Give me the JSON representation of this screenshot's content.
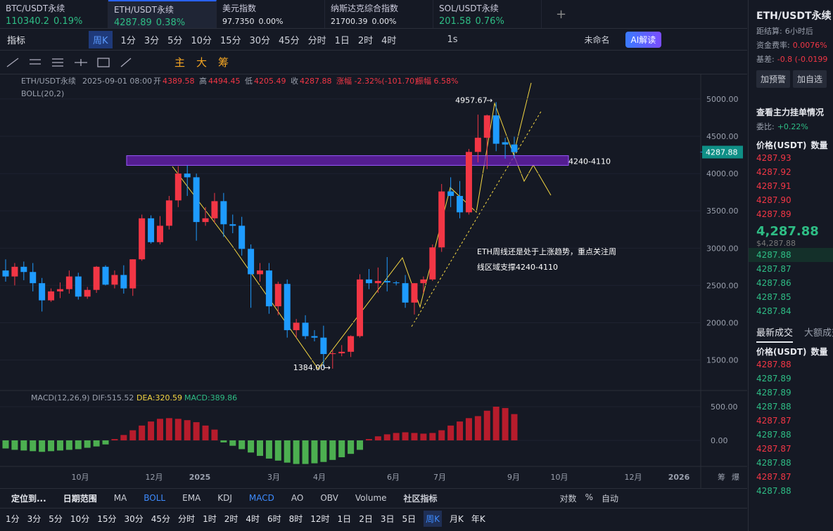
{
  "tabs": [
    {
      "name": "BTC/USDT永续",
      "price": "110340.2",
      "change": "0.19%"
    },
    {
      "name": "ETH/USDT永续",
      "price": "4287.89",
      "change": "0.38%"
    },
    {
      "name": "美元指数",
      "price": "97.7350",
      "change": "0.00%"
    },
    {
      "name": "纳斯达克综合指数",
      "price": "21700.39",
      "change": "0.00%"
    },
    {
      "name": "SOL/USDT永续",
      "price": "201.58",
      "change": "0.76%"
    }
  ],
  "toolbar": {
    "indicator": "指标",
    "period": "周K",
    "intervals": [
      "1分",
      "3分",
      "5分",
      "10分",
      "15分",
      "30分",
      "45分",
      "分时",
      "1日",
      "2时",
      "4时"
    ],
    "seconds": "1s",
    "layout": "未命名",
    "ai": "AI解读"
  },
  "tools": [
    "主",
    "大",
    "筹"
  ],
  "chart_data": {
    "type": "candlestick",
    "symbol": "ETH/USDT永续",
    "date": "2025-09-01 08:00",
    "open_label": "开",
    "high_label": "高",
    "low_label": "低",
    "close_label": "收",
    "change": "涨幅 -2.32%(-101.70)",
    "amplitude": "振幅 6.58%",
    "boll": "BOLL(20,2)",
    "ylim": [
      1100,
      5150
    ],
    "yticks": [
      {
        "value": 1500,
        "label": "1500.00"
      },
      {
        "value": 2000,
        "label": "2000.00"
      },
      {
        "value": 2500,
        "label": "2500.00"
      },
      {
        "value": 3000,
        "label": "3000.00"
      },
      {
        "value": 3500,
        "label": "3500.00"
      },
      {
        "value": 4000,
        "label": "4000.00"
      },
      {
        "value": 4500,
        "label": "4500.00"
      },
      {
        "value": 5000,
        "label": "5000.00"
      }
    ],
    "current": {
      "value": 4287.88,
      "label": "4287.88"
    },
    "zone": {
      "label": "4240-4110",
      "high": 4240,
      "low": 4110
    },
    "max_label": "4957.67",
    "min_label": "1384.00",
    "annotation": [
      "ETH周线还是处于上涨趋势，重点关注周",
      "线区域支撑4240-4110"
    ],
    "x_labels": [
      "10月",
      "12月",
      "2025",
      "3月",
      "4月",
      "6月",
      "7月",
      "9月",
      "10月",
      "12月",
      "2026"
    ],
    "axis_icons": [
      "筹",
      "爆"
    ],
    "candles": [
      [
        2700,
        2850,
        2550,
        2620
      ],
      [
        2620,
        2800,
        2500,
        2750
      ],
      [
        2750,
        2820,
        2570,
        2680
      ],
      [
        2680,
        2800,
        2420,
        2530
      ],
      [
        2530,
        2600,
        2150,
        2300
      ],
      [
        2300,
        2460,
        2280,
        2420
      ],
      [
        2420,
        2540,
        2330,
        2450
      ],
      [
        2450,
        2700,
        2390,
        2620
      ],
      [
        2620,
        2670,
        2310,
        2350
      ],
      [
        2350,
        2480,
        2320,
        2440
      ],
      [
        2440,
        2760,
        2400,
        2750
      ],
      [
        2750,
        2770,
        2500,
        2510
      ],
      [
        2510,
        2700,
        2460,
        2640
      ],
      [
        2640,
        2770,
        2390,
        2460
      ],
      [
        2460,
        2850,
        2360,
        2850
      ],
      [
        2850,
        3450,
        2830,
        3400
      ],
      [
        3400,
        3440,
        3060,
        3080
      ],
      [
        3080,
        3430,
        3050,
        3300
      ],
      [
        3300,
        3700,
        3250,
        3640
      ],
      [
        3640,
        4100,
        3550,
        4000
      ],
      [
        4000,
        4110,
        3700,
        3950
      ],
      [
        3950,
        4000,
        3100,
        3350
      ],
      [
        3350,
        3550,
        3300,
        3400
      ],
      [
        3400,
        3740,
        3340,
        3630
      ],
      [
        3630,
        3740,
        3150,
        3320
      ],
      [
        3320,
        3450,
        3200,
        3300
      ],
      [
        3300,
        3420,
        2900,
        2990
      ],
      [
        2990,
        3050,
        2200,
        2650
      ],
      [
        2650,
        2800,
        2550,
        2700
      ],
      [
        2700,
        2800,
        2120,
        2220
      ],
      [
        2220,
        2550,
        2100,
        2520
      ],
      [
        2520,
        2580,
        1800,
        1900
      ],
      [
        1900,
        2050,
        1800,
        2000
      ],
      [
        2000,
        2100,
        1780,
        1820
      ],
      [
        1820,
        1900,
        1750,
        1800
      ],
      [
        1800,
        1960,
        1400,
        1580
      ],
      [
        1580,
        1640,
        1384,
        1590
      ],
      [
        1590,
        1700,
        1550,
        1610
      ],
      [
        1610,
        1830,
        1540,
        1820
      ],
      [
        1820,
        2650,
        1800,
        2580
      ],
      [
        2580,
        2720,
        2450,
        2530
      ],
      [
        2530,
        2740,
        2400,
        2560
      ],
      [
        2560,
        2880,
        2420,
        2540
      ],
      [
        2540,
        2560,
        2500,
        2530
      ],
      [
        2530,
        2640,
        2200,
        2270
      ],
      [
        2270,
        2530,
        2110,
        2530
      ],
      [
        2530,
        2620,
        2400,
        2580
      ],
      [
        2580,
        3050,
        2560,
        3010
      ],
      [
        3010,
        3860,
        2950,
        3760
      ],
      [
        3760,
        3950,
        3550,
        3700
      ],
      [
        3700,
        3900,
        3400,
        3480
      ],
      [
        3480,
        4330,
        3450,
        4290
      ],
      [
        4290,
        4790,
        4150,
        4480
      ],
      [
        4480,
        4790,
        4060,
        4780
      ],
      [
        4780,
        4957.67,
        4300,
        4400
      ],
      [
        4420,
        4480,
        4200,
        4389.58
      ],
      [
        4389.58,
        4494.45,
        4205.49,
        4287.88
      ]
    ]
  },
  "macd": {
    "title": "MACD(12,26,9)",
    "dif": "DIF:515.52",
    "dea": "DEA:320.59",
    "macd": "MACD:389.86",
    "ylim": [
      -344,
      698
    ],
    "yticks": [
      {
        "value": 500,
        "label": "500.00"
      },
      {
        "value": 0,
        "label": "0.00"
      }
    ],
    "hist": [
      -120,
      -140,
      -150,
      -160,
      -170,
      -160,
      -150,
      -140,
      -130,
      -110,
      -90,
      -60,
      20,
      80,
      150,
      220,
      280,
      320,
      330,
      320,
      300,
      270,
      220,
      160,
      -30,
      -80,
      -130,
      -180,
      -230,
      -270,
      -300,
      -330,
      -350,
      -350,
      -340,
      -320,
      -290,
      -250,
      -200,
      -140,
      20,
      60,
      90,
      110,
      120,
      110,
      100,
      110,
      150,
      220,
      280,
      330,
      360,
      440,
      500,
      480,
      389.86
    ]
  },
  "bottom": {
    "locate": "定位到...",
    "range": "日期范围",
    "ind1": [
      "MA",
      "BOLL",
      "EMA"
    ],
    "ind2": [
      "KDJ",
      "MACD",
      "AO",
      "OBV",
      "Volume"
    ],
    "community": "社区指标",
    "opts": [
      "对数",
      "%",
      "自动"
    ],
    "intervals": [
      "1分",
      "3分",
      "5分",
      "10分",
      "15分",
      "30分",
      "45分",
      "分时",
      "1时",
      "2时",
      "4时",
      "6时",
      "8时",
      "12时",
      "1日",
      "2日",
      "3日",
      "5日",
      "周K",
      "月K",
      "年K"
    ]
  },
  "sidebar": {
    "title": "ETH/USDT永续",
    "settle": "距结算:",
    "settle_v": "6小时后",
    "funding": "资金费率:",
    "funding_v": "0.0076%",
    "basis": "基差:",
    "basis_v": "-0.8 (-0.0199",
    "alert": "加预警",
    "fav": "加自选",
    "depth": "查看主力挂单情况",
    "ratio": "委比:",
    "ratio_v": "+0.22%",
    "head_price": "价格(USDT)",
    "head_qty": "数量",
    "asks": [
      "4287.93",
      "4287.92",
      "4287.91",
      "4287.90",
      "4287.89"
    ],
    "last": "4,287.88",
    "last_usd": "$4,287.88",
    "bids": [
      "4287.88",
      "4287.87",
      "4287.86",
      "4287.85",
      "4287.84"
    ],
    "trades_tab": "最新成交",
    "big_tab": "大额成交",
    "trades": [
      {
        "p": "4287.88",
        "s": "r"
      },
      {
        "p": "4287.89",
        "s": "g"
      },
      {
        "p": "4287.89",
        "s": "g"
      },
      {
        "p": "4287.88",
        "s": "g"
      },
      {
        "p": "4287.87",
        "s": "r"
      },
      {
        "p": "4287.88",
        "s": "g"
      },
      {
        "p": "4287.87",
        "s": "r"
      },
      {
        "p": "4287.88",
        "s": "g"
      },
      {
        "p": "4287.87",
        "s": "r"
      },
      {
        "p": "4287.88",
        "s": "g"
      }
    ]
  }
}
